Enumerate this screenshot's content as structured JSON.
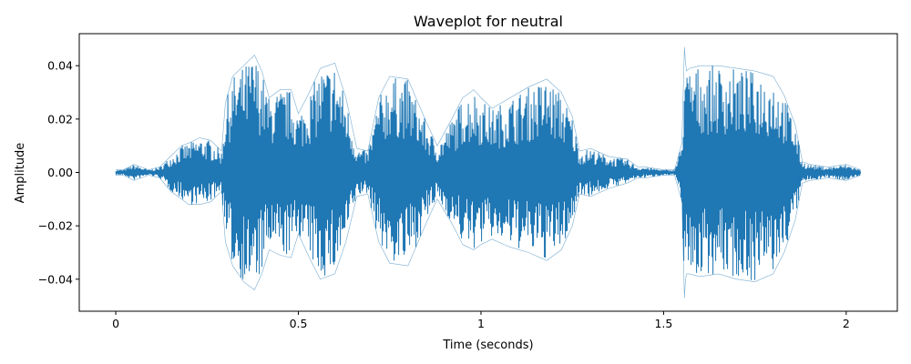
{
  "chart_data": {
    "type": "line",
    "title": "Waveplot for neutral",
    "xlabel": "Time (seconds)",
    "ylabel": "Amplitude",
    "xlim": [
      -0.1,
      2.14
    ],
    "ylim": [
      -0.052,
      0.052
    ],
    "xticks": [
      {
        "value": 0,
        "label": "0"
      },
      {
        "value": 0.5,
        "label": "0.5"
      },
      {
        "value": 1,
        "label": "1"
      },
      {
        "value": 1.5,
        "label": "1.5"
      },
      {
        "value": 2,
        "label": "2"
      }
    ],
    "yticks": [
      {
        "value": 0.04,
        "label": "0.04"
      },
      {
        "value": 0.02,
        "label": "0.02"
      },
      {
        "value": 0.0,
        "label": "0.00"
      },
      {
        "value": -0.02,
        "label": "−0.02"
      },
      {
        "value": -0.04,
        "label": "−0.04"
      }
    ],
    "grid": false,
    "duration": 2.04,
    "series": [
      {
        "color": "#1f77b4",
        "envelope": {
          "x": [
            0,
            0.02,
            0.05,
            0.09,
            0.12,
            0.15,
            0.18,
            0.2,
            0.23,
            0.26,
            0.29,
            0.3,
            0.32,
            0.35,
            0.38,
            0.4,
            0.42,
            0.45,
            0.48,
            0.5,
            0.53,
            0.56,
            0.6,
            0.63,
            0.66,
            0.69,
            0.72,
            0.75,
            0.8,
            0.85,
            0.88,
            0.92,
            0.95,
            0.98,
            1.0,
            1.03,
            1.08,
            1.13,
            1.18,
            1.22,
            1.25,
            1.27,
            1.3,
            1.35,
            1.4,
            1.43,
            1.45,
            1.5,
            1.53,
            1.55,
            1.557,
            1.56,
            1.563,
            1.57,
            1.6,
            1.65,
            1.7,
            1.75,
            1.8,
            1.83,
            1.86,
            1.88,
            1.9,
            1.95,
            2.0,
            2.04
          ],
          "top": [
            0.001,
            0.001,
            0.003,
            0.001,
            0.002,
            0.006,
            0.01,
            0.011,
            0.013,
            0.012,
            0.008,
            0.026,
            0.036,
            0.04,
            0.044,
            0.038,
            0.028,
            0.031,
            0.031,
            0.022,
            0.03,
            0.039,
            0.041,
            0.028,
            0.009,
            0.008,
            0.028,
            0.036,
            0.035,
            0.019,
            0.01,
            0.02,
            0.028,
            0.031,
            0.028,
            0.024,
            0.028,
            0.032,
            0.035,
            0.03,
            0.021,
            0.008,
            0.009,
            0.006,
            0.005,
            0.002,
            0.002,
            0.001,
            0.001,
            0.011,
            0.047,
            0.041,
            0.038,
            0.039,
            0.04,
            0.04,
            0.039,
            0.038,
            0.036,
            0.029,
            0.018,
            0.004,
            0.003,
            0.002,
            0.003,
            0.001
          ],
          "bottom": [
            -0.001,
            -0.001,
            -0.003,
            -0.001,
            -0.002,
            -0.007,
            -0.01,
            -0.012,
            -0.012,
            -0.011,
            -0.007,
            -0.026,
            -0.035,
            -0.041,
            -0.044,
            -0.038,
            -0.029,
            -0.031,
            -0.032,
            -0.023,
            -0.032,
            -0.04,
            -0.038,
            -0.026,
            -0.009,
            -0.008,
            -0.026,
            -0.034,
            -0.035,
            -0.019,
            -0.01,
            -0.019,
            -0.027,
            -0.029,
            -0.027,
            -0.025,
            -0.028,
            -0.03,
            -0.033,
            -0.029,
            -0.02,
            -0.008,
            -0.009,
            -0.006,
            -0.004,
            -0.002,
            -0.002,
            -0.001,
            -0.001,
            -0.011,
            -0.047,
            -0.04,
            -0.038,
            -0.038,
            -0.039,
            -0.038,
            -0.04,
            -0.041,
            -0.038,
            -0.03,
            -0.018,
            -0.004,
            -0.003,
            -0.002,
            -0.003,
            -0.001
          ]
        }
      }
    ]
  }
}
